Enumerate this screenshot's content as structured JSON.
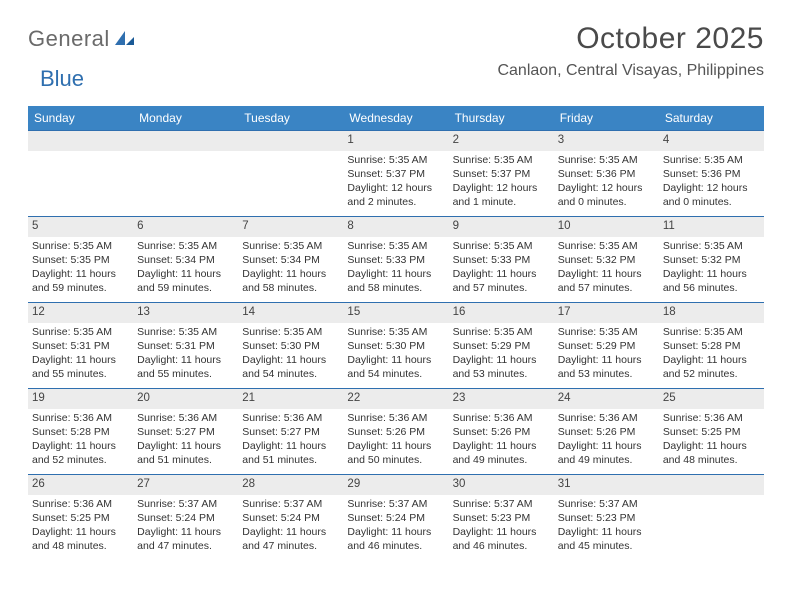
{
  "brand": {
    "general": "General",
    "blue": "Blue"
  },
  "title": "October 2025",
  "location": "Canlaon, Central Visayas, Philippines",
  "colors": {
    "header_bg": "#3a84c4",
    "header_text": "#ffffff",
    "daybar_bg": "#ececec",
    "daybar_border": "#2f6faf",
    "body_text": "#333333",
    "title_text": "#4a4a4a",
    "logo_blue": "#2f6faf"
  },
  "weekdays": [
    "Sunday",
    "Monday",
    "Tuesday",
    "Wednesday",
    "Thursday",
    "Friday",
    "Saturday"
  ],
  "weeks": [
    [
      null,
      null,
      null,
      {
        "n": "1",
        "sunrise": "Sunrise: 5:35 AM",
        "sunset": "Sunset: 5:37 PM",
        "daylight": "Daylight: 12 hours and 2 minutes."
      },
      {
        "n": "2",
        "sunrise": "Sunrise: 5:35 AM",
        "sunset": "Sunset: 5:37 PM",
        "daylight": "Daylight: 12 hours and 1 minute."
      },
      {
        "n": "3",
        "sunrise": "Sunrise: 5:35 AM",
        "sunset": "Sunset: 5:36 PM",
        "daylight": "Daylight: 12 hours and 0 minutes."
      },
      {
        "n": "4",
        "sunrise": "Sunrise: 5:35 AM",
        "sunset": "Sunset: 5:36 PM",
        "daylight": "Daylight: 12 hours and 0 minutes."
      }
    ],
    [
      {
        "n": "5",
        "sunrise": "Sunrise: 5:35 AM",
        "sunset": "Sunset: 5:35 PM",
        "daylight": "Daylight: 11 hours and 59 minutes."
      },
      {
        "n": "6",
        "sunrise": "Sunrise: 5:35 AM",
        "sunset": "Sunset: 5:34 PM",
        "daylight": "Daylight: 11 hours and 59 minutes."
      },
      {
        "n": "7",
        "sunrise": "Sunrise: 5:35 AM",
        "sunset": "Sunset: 5:34 PM",
        "daylight": "Daylight: 11 hours and 58 minutes."
      },
      {
        "n": "8",
        "sunrise": "Sunrise: 5:35 AM",
        "sunset": "Sunset: 5:33 PM",
        "daylight": "Daylight: 11 hours and 58 minutes."
      },
      {
        "n": "9",
        "sunrise": "Sunrise: 5:35 AM",
        "sunset": "Sunset: 5:33 PM",
        "daylight": "Daylight: 11 hours and 57 minutes."
      },
      {
        "n": "10",
        "sunrise": "Sunrise: 5:35 AM",
        "sunset": "Sunset: 5:32 PM",
        "daylight": "Daylight: 11 hours and 57 minutes."
      },
      {
        "n": "11",
        "sunrise": "Sunrise: 5:35 AM",
        "sunset": "Sunset: 5:32 PM",
        "daylight": "Daylight: 11 hours and 56 minutes."
      }
    ],
    [
      {
        "n": "12",
        "sunrise": "Sunrise: 5:35 AM",
        "sunset": "Sunset: 5:31 PM",
        "daylight": "Daylight: 11 hours and 55 minutes."
      },
      {
        "n": "13",
        "sunrise": "Sunrise: 5:35 AM",
        "sunset": "Sunset: 5:31 PM",
        "daylight": "Daylight: 11 hours and 55 minutes."
      },
      {
        "n": "14",
        "sunrise": "Sunrise: 5:35 AM",
        "sunset": "Sunset: 5:30 PM",
        "daylight": "Daylight: 11 hours and 54 minutes."
      },
      {
        "n": "15",
        "sunrise": "Sunrise: 5:35 AM",
        "sunset": "Sunset: 5:30 PM",
        "daylight": "Daylight: 11 hours and 54 minutes."
      },
      {
        "n": "16",
        "sunrise": "Sunrise: 5:35 AM",
        "sunset": "Sunset: 5:29 PM",
        "daylight": "Daylight: 11 hours and 53 minutes."
      },
      {
        "n": "17",
        "sunrise": "Sunrise: 5:35 AM",
        "sunset": "Sunset: 5:29 PM",
        "daylight": "Daylight: 11 hours and 53 minutes."
      },
      {
        "n": "18",
        "sunrise": "Sunrise: 5:35 AM",
        "sunset": "Sunset: 5:28 PM",
        "daylight": "Daylight: 11 hours and 52 minutes."
      }
    ],
    [
      {
        "n": "19",
        "sunrise": "Sunrise: 5:36 AM",
        "sunset": "Sunset: 5:28 PM",
        "daylight": "Daylight: 11 hours and 52 minutes."
      },
      {
        "n": "20",
        "sunrise": "Sunrise: 5:36 AM",
        "sunset": "Sunset: 5:27 PM",
        "daylight": "Daylight: 11 hours and 51 minutes."
      },
      {
        "n": "21",
        "sunrise": "Sunrise: 5:36 AM",
        "sunset": "Sunset: 5:27 PM",
        "daylight": "Daylight: 11 hours and 51 minutes."
      },
      {
        "n": "22",
        "sunrise": "Sunrise: 5:36 AM",
        "sunset": "Sunset: 5:26 PM",
        "daylight": "Daylight: 11 hours and 50 minutes."
      },
      {
        "n": "23",
        "sunrise": "Sunrise: 5:36 AM",
        "sunset": "Sunset: 5:26 PM",
        "daylight": "Daylight: 11 hours and 49 minutes."
      },
      {
        "n": "24",
        "sunrise": "Sunrise: 5:36 AM",
        "sunset": "Sunset: 5:26 PM",
        "daylight": "Daylight: 11 hours and 49 minutes."
      },
      {
        "n": "25",
        "sunrise": "Sunrise: 5:36 AM",
        "sunset": "Sunset: 5:25 PM",
        "daylight": "Daylight: 11 hours and 48 minutes."
      }
    ],
    [
      {
        "n": "26",
        "sunrise": "Sunrise: 5:36 AM",
        "sunset": "Sunset: 5:25 PM",
        "daylight": "Daylight: 11 hours and 48 minutes."
      },
      {
        "n": "27",
        "sunrise": "Sunrise: 5:37 AM",
        "sunset": "Sunset: 5:24 PM",
        "daylight": "Daylight: 11 hours and 47 minutes."
      },
      {
        "n": "28",
        "sunrise": "Sunrise: 5:37 AM",
        "sunset": "Sunset: 5:24 PM",
        "daylight": "Daylight: 11 hours and 47 minutes."
      },
      {
        "n": "29",
        "sunrise": "Sunrise: 5:37 AM",
        "sunset": "Sunset: 5:24 PM",
        "daylight": "Daylight: 11 hours and 46 minutes."
      },
      {
        "n": "30",
        "sunrise": "Sunrise: 5:37 AM",
        "sunset": "Sunset: 5:23 PM",
        "daylight": "Daylight: 11 hours and 46 minutes."
      },
      {
        "n": "31",
        "sunrise": "Sunrise: 5:37 AM",
        "sunset": "Sunset: 5:23 PM",
        "daylight": "Daylight: 11 hours and 45 minutes."
      },
      null
    ]
  ]
}
